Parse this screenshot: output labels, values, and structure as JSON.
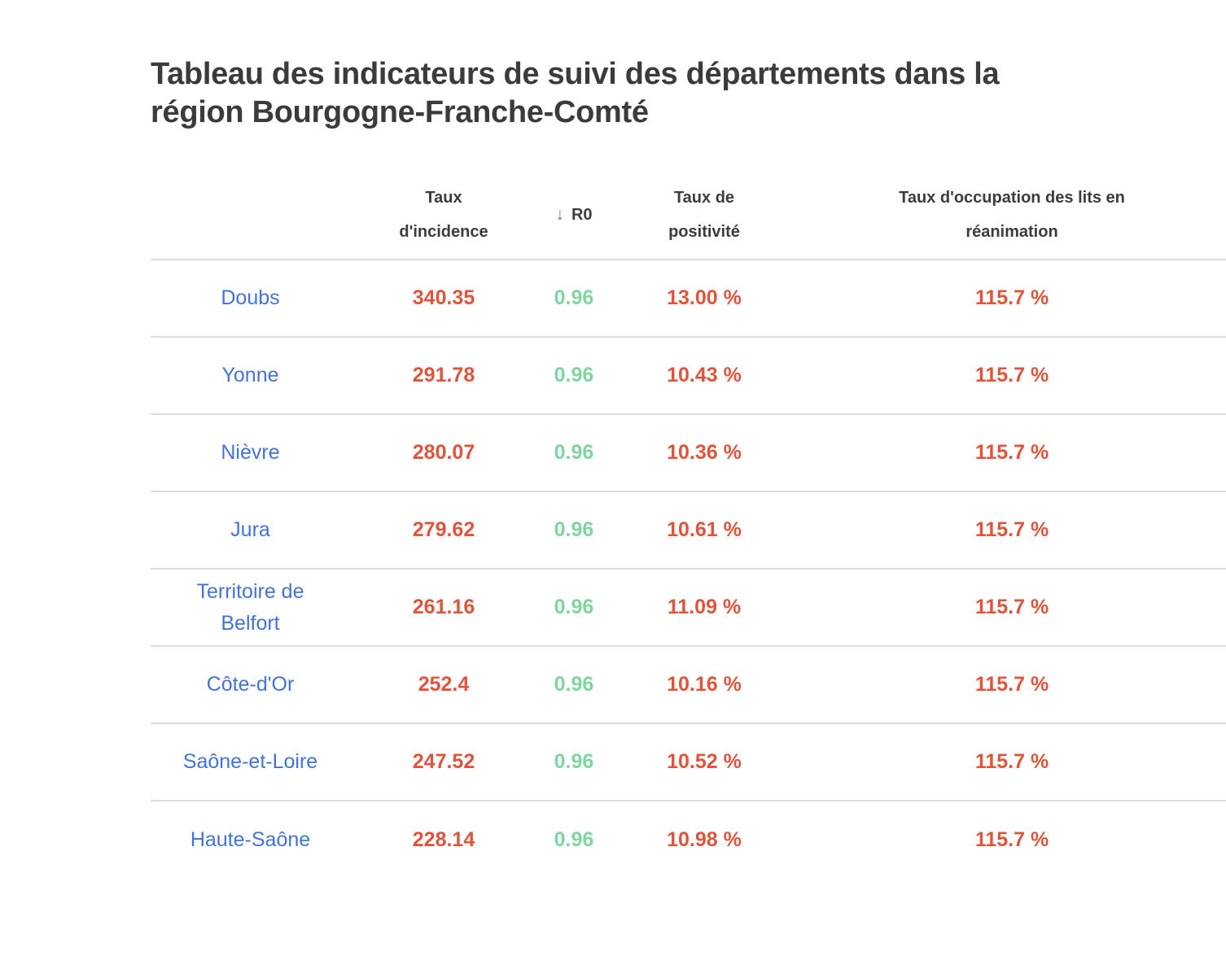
{
  "title": {
    "line1": "Tableau des indicateurs de suivi des départements dans la",
    "line2": "région Bourgogne-Franche-Comté"
  },
  "table": {
    "header": {
      "department": "",
      "incidence": [
        "Taux",
        "d'incidence"
      ],
      "r0": {
        "sort_icon": "↓",
        "label": "R0"
      },
      "positivity": [
        "Taux de",
        "positivité"
      ],
      "icu": [
        "Taux d'occupation des lits en",
        "réanimation"
      ]
    },
    "rows": [
      {
        "department": "Doubs",
        "incidence": "340.35",
        "r0": "0.96",
        "positivity": "13.00 %",
        "icu": "115.7 %"
      },
      {
        "department": "Yonne",
        "incidence": "291.78",
        "r0": "0.96",
        "positivity": "10.43 %",
        "icu": "115.7 %"
      },
      {
        "department": "Nièvre",
        "incidence": "280.07",
        "r0": "0.96",
        "positivity": "10.36 %",
        "icu": "115.7 %"
      },
      {
        "department": "Jura",
        "incidence": "279.62",
        "r0": "0.96",
        "positivity": "10.61 %",
        "icu": "115.7 %"
      },
      {
        "department": "Territoire de Belfort",
        "incidence": "261.16",
        "r0": "0.96",
        "positivity": "11.09 %",
        "icu": "115.7 %"
      },
      {
        "department": "Côte-d'Or",
        "incidence": "252.4",
        "r0": "0.96",
        "positivity": "10.16 %",
        "icu": "115.7 %"
      },
      {
        "department": "Saône-et-Loire",
        "incidence": "247.52",
        "r0": "0.96",
        "positivity": "10.52 %",
        "icu": "115.7 %"
      },
      {
        "department": "Haute-Saône",
        "incidence": "228.14",
        "r0": "0.96",
        "positivity": "10.98 %",
        "icu": "115.7 %"
      }
    ]
  },
  "colors": {
    "department_link": "#4372db",
    "incidence_value": "#e0543c",
    "r0_value": "#7ed69e",
    "positivity_value": "#e0543c",
    "icu_value": "#e0543c",
    "title_text": "#3b3b3b",
    "header_text": "#3c3c3c",
    "row_border": "#dcdcdc",
    "background": "#ffffff"
  }
}
